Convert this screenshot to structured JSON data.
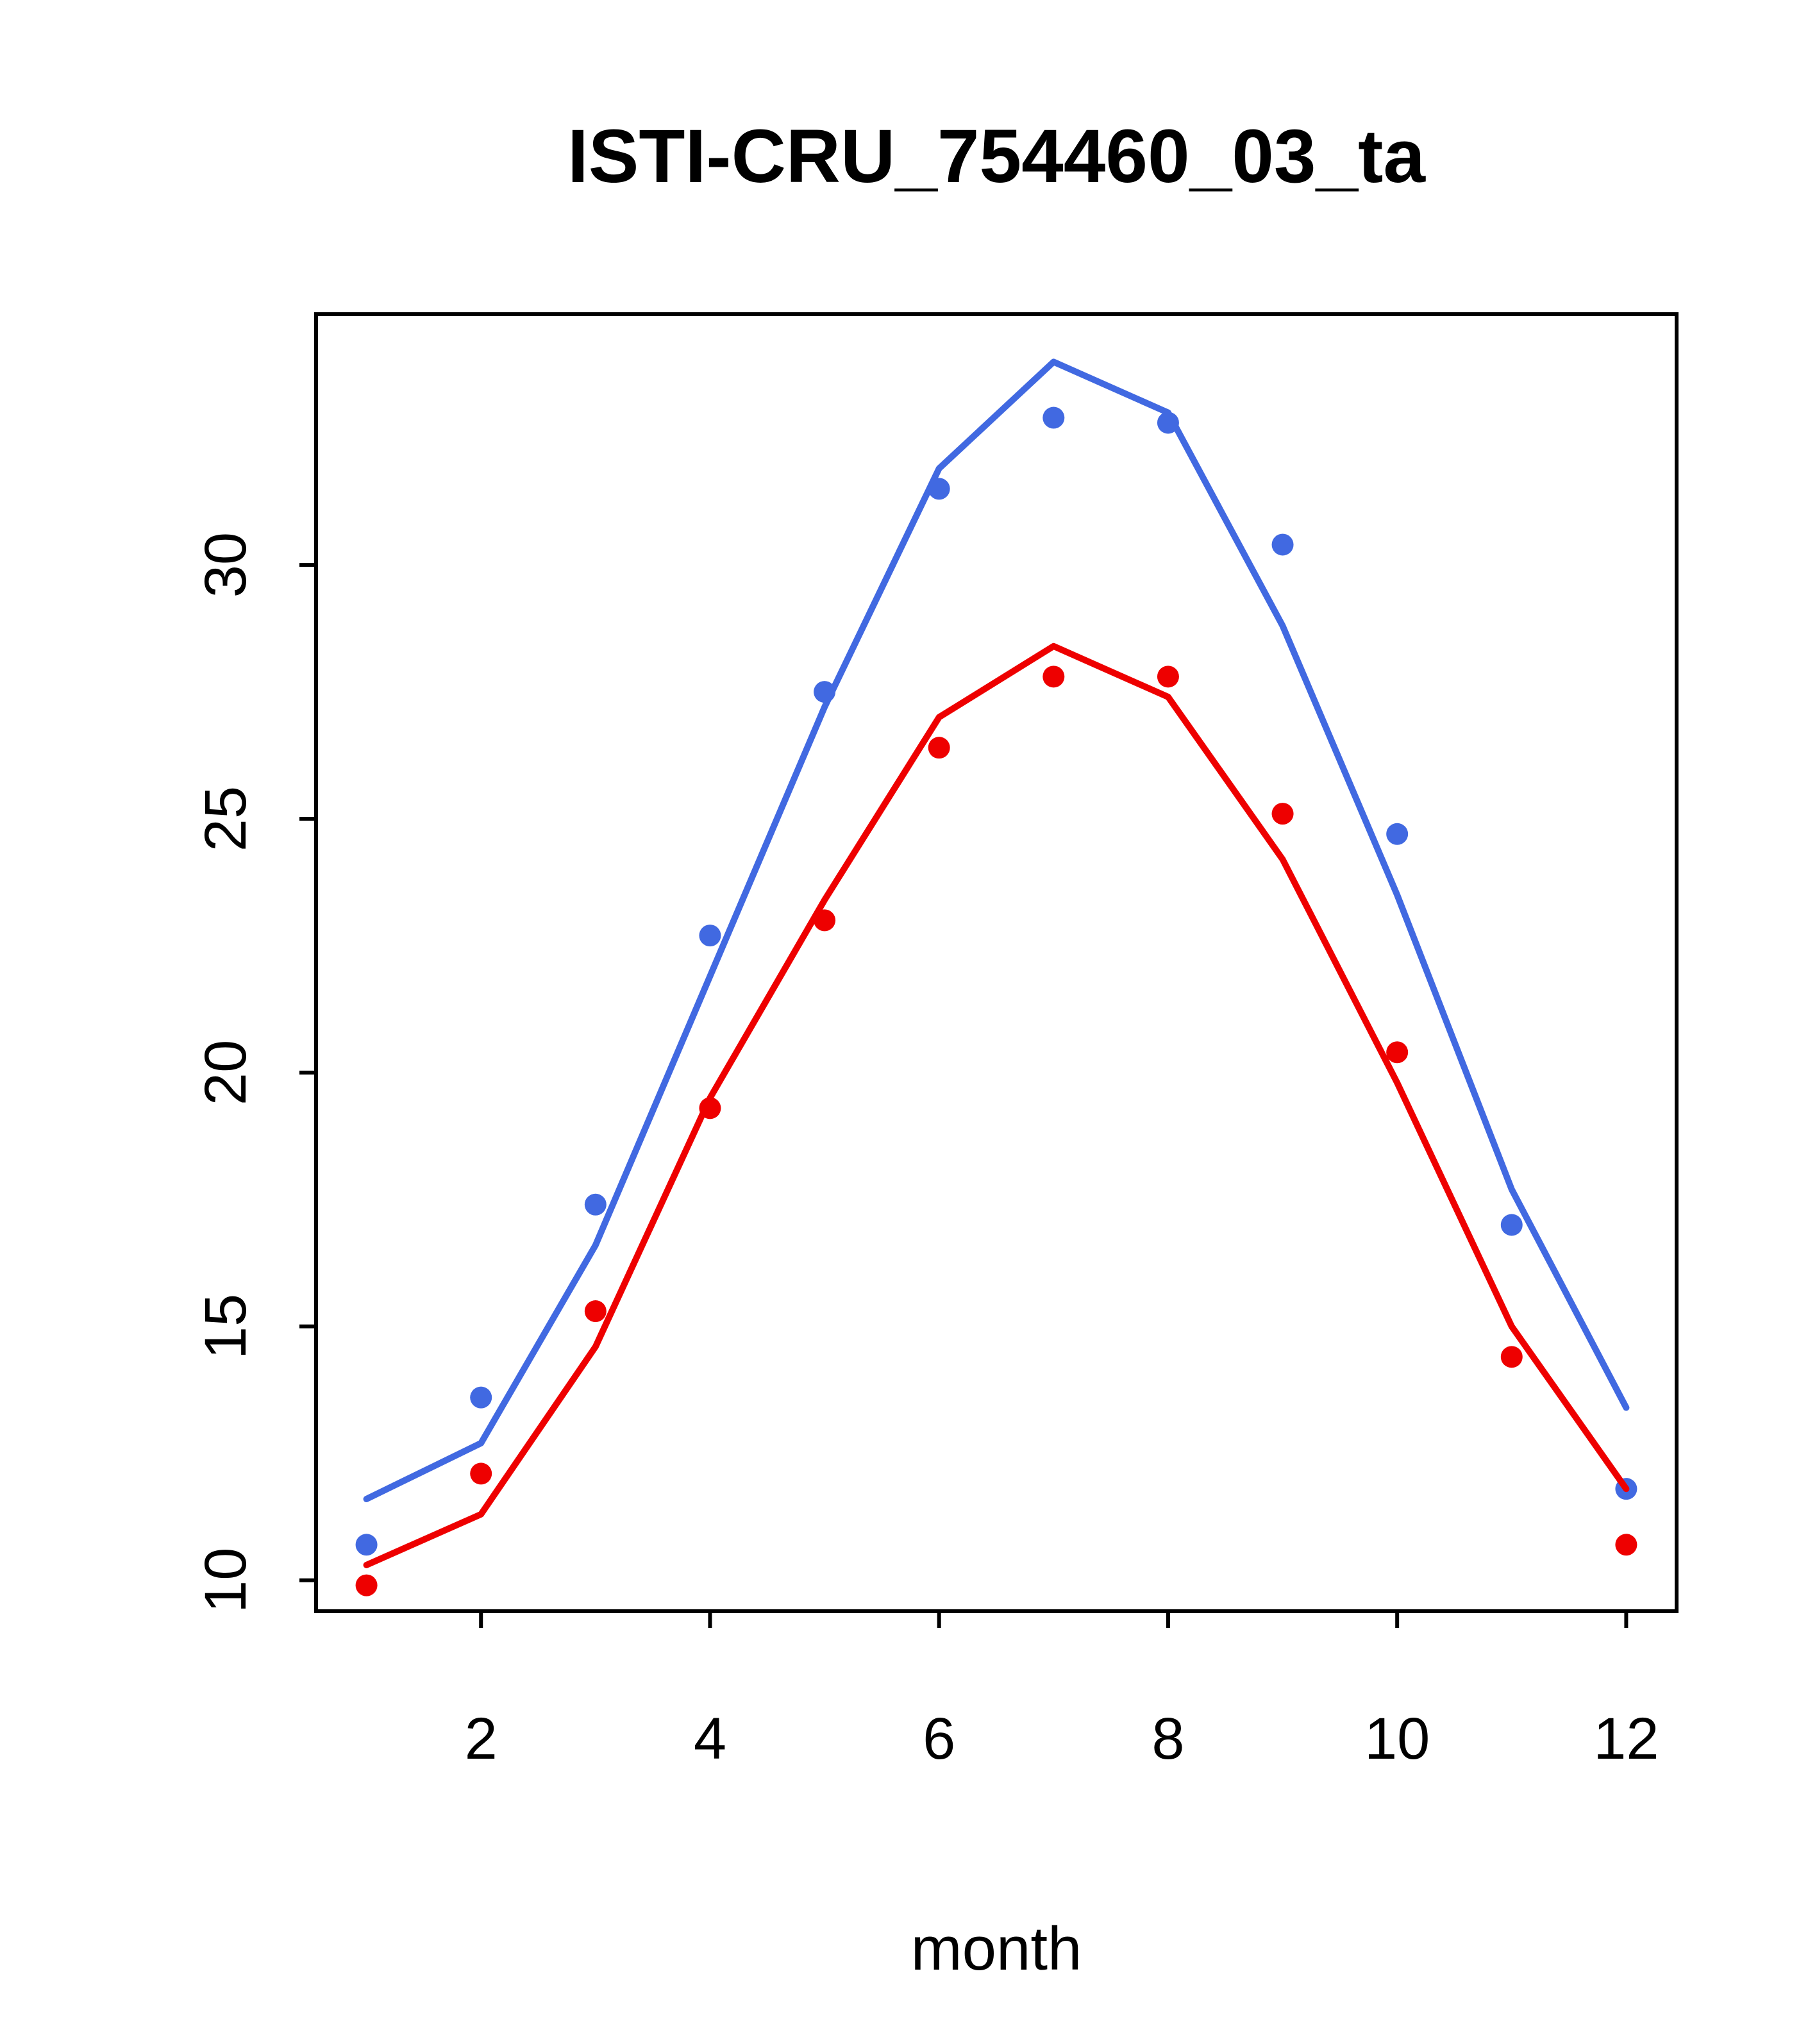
{
  "title": "ISTI-CRU_754460_03_ta",
  "chart_data": {
    "type": "line",
    "title": "ISTI-CRU_754460_03_ta",
    "xlabel": "month",
    "ylabel": "",
    "grid": false,
    "legend": "none",
    "x": [
      1,
      2,
      3,
      4,
      5,
      6,
      7,
      8,
      9,
      10,
      11,
      12
    ],
    "xticks": [
      2,
      4,
      6,
      8,
      10,
      12
    ],
    "yticks": [
      10,
      15,
      20,
      25,
      30
    ],
    "xlim": [
      0.56,
      12.44
    ],
    "ylim": [
      9.39,
      34.94
    ],
    "colors": {
      "blue_series": "#4169E1",
      "red_series": "#EE0000",
      "axis": "#000000",
      "background": "#FFFFFF"
    },
    "series": [
      {
        "name": "blue-line",
        "style": "line",
        "color": "#4169E1",
        "values": [
          11.6,
          12.7,
          16.6,
          21.9,
          27.2,
          31.9,
          34.0,
          33.0,
          28.8,
          23.5,
          17.7,
          13.4
        ]
      },
      {
        "name": "blue-points",
        "style": "points",
        "color": "#4169E1",
        "values": [
          10.7,
          13.6,
          17.4,
          22.7,
          27.5,
          31.5,
          32.9,
          32.8,
          30.4,
          24.7,
          17.0,
          11.8
        ]
      },
      {
        "name": "red-line",
        "style": "line",
        "color": "#EE0000",
        "values": [
          10.3,
          11.3,
          14.6,
          19.5,
          23.4,
          27.0,
          28.4,
          27.4,
          24.2,
          19.8,
          15.0,
          11.8
        ]
      },
      {
        "name": "red-points",
        "style": "points",
        "color": "#EE0000",
        "values": [
          9.9,
          12.1,
          15.3,
          19.3,
          23.0,
          26.4,
          27.8,
          27.8,
          25.1,
          20.4,
          14.4,
          10.7
        ]
      }
    ]
  }
}
